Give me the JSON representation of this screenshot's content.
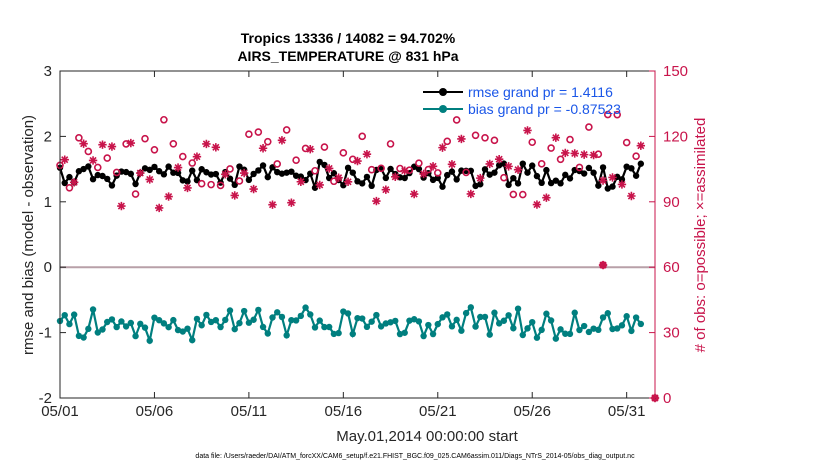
{
  "chart_data": {
    "type": "line",
    "title": "Tropics 13336 / 14082 = 94.702%",
    "subtitle": "AIRS_TEMPERATURE @ 831 hPa",
    "xlabel": "May.01,2014 00:00:00 start",
    "ylabel": "rmse and bias (model - observation)",
    "ylabel_right": "# of obs: o=possible; ×=assimilated",
    "xlim": [
      0,
      31.5
    ],
    "ylim": [
      -2,
      3
    ],
    "ylim_right": [
      0,
      150
    ],
    "x_ticks": [
      0,
      5,
      10,
      15,
      20,
      25,
      30
    ],
    "x_tick_labels": [
      "05/01",
      "05/06",
      "05/11",
      "05/16",
      "05/21",
      "05/26",
      "05/31"
    ],
    "y_ticks": [
      -2,
      -1,
      0,
      1,
      2,
      3
    ],
    "y_tick_labels": [
      "-2",
      "-1",
      "0",
      "1",
      "2",
      "3"
    ],
    "y_right_ticks": [
      0,
      30,
      60,
      90,
      120,
      150
    ],
    "y_right_tick_labels": [
      "0",
      "30",
      "60",
      "90",
      "120",
      "150"
    ],
    "legend": {
      "position": "top-right",
      "entries": [
        {
          "label": "rmse grand pr = 1.4116",
          "color": "#000000"
        },
        {
          "label": "bias grand pr = -0.87523",
          "color": "#007f7f"
        }
      ]
    },
    "zero_line": 0,
    "footer": "data file: /Users/raeder/DAI/ATM_forcXX/CAM6_setup/f.e21.FHIST_BGC.f09_025.CAM6assim.011/Diags_NTrS_2014-05/obs_diag_output.nc",
    "series": [
      {
        "name": "rmse",
        "axis": "left",
        "color": "#000000",
        "marker": "filled-circle",
        "base": 1.41,
        "amplitude": 0.14,
        "seed": 11,
        "n": 124,
        "step": 0.25,
        "gap_at": 112
      },
      {
        "name": "bias",
        "axis": "left",
        "color": "#007f7f",
        "marker": "filled-circle",
        "base": -0.87,
        "amplitude": 0.17,
        "seed": 29,
        "n": 124,
        "step": 0.25,
        "gap_at": 112
      },
      {
        "name": "possible",
        "axis": "right",
        "color": "#c8144b",
        "marker": "open-circle",
        "base": 110,
        "amplitude": 14,
        "seed": 47,
        "n": 124,
        "step": 0.25,
        "gap_at": 112,
        "outliers": [
          {
            "x": 28.75,
            "y": 61
          },
          {
            "x": 31.5,
            "y": 0
          }
        ]
      },
      {
        "name": "assimilated",
        "axis": "right",
        "color": "#c8144b",
        "marker": "asterisk",
        "base": 106,
        "amplitude": 13,
        "seed": 83,
        "n": 124,
        "step": 0.25,
        "gap_at": 112,
        "outliers": [
          {
            "x": 28.75,
            "y": 61
          },
          {
            "x": 31.5,
            "y": 0
          }
        ]
      }
    ]
  }
}
